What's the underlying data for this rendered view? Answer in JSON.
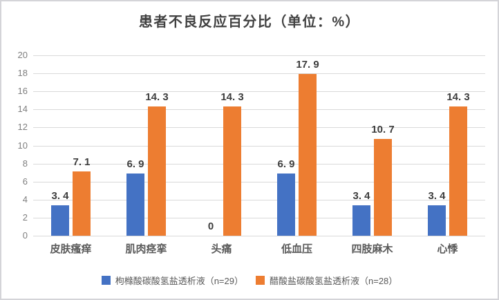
{
  "frame": {
    "background": "#ffffff",
    "border_color": "#d4d4d8"
  },
  "chart_data": {
    "type": "bar",
    "title": "患者不良反应百分比（单位：%）",
    "xlabel": "",
    "ylabel": "",
    "categories": [
      "皮肤瘙痒",
      "肌肉痉挛",
      "头痛",
      "低血压",
      "四肢麻木",
      "心悸"
    ],
    "series": [
      {
        "name": "枸橼酸碳酸氢盐透析液（n=29）",
        "color": "#4472c4",
        "values": [
          3.4,
          6.9,
          0,
          6.9,
          3.4,
          3.4
        ],
        "labels": [
          "3. 4",
          "6. 9",
          "0",
          "6. 9",
          "3. 4",
          "3. 4"
        ]
      },
      {
        "name": "醋酸盐碳酸氢盐透析液（n=28）",
        "color": "#ed7d31",
        "values": [
          7.1,
          14.3,
          14.3,
          17.9,
          10.7,
          14.3
        ],
        "labels": [
          "7. 1",
          "14. 3",
          "14. 3",
          "17. 9",
          "10. 7",
          "14. 3"
        ]
      }
    ],
    "ylim": [
      0,
      20
    ],
    "yticks": [
      0,
      2,
      4,
      6,
      8,
      10,
      12,
      14,
      16,
      18,
      20
    ],
    "grid": true,
    "gridline_color": "#d9d9d9",
    "legend_position": "bottom",
    "data_label_color": "#3d3d3d",
    "axis_tick_color": "#7f7f7f",
    "category_label_color": "#595959",
    "title_color": "#404040"
  }
}
